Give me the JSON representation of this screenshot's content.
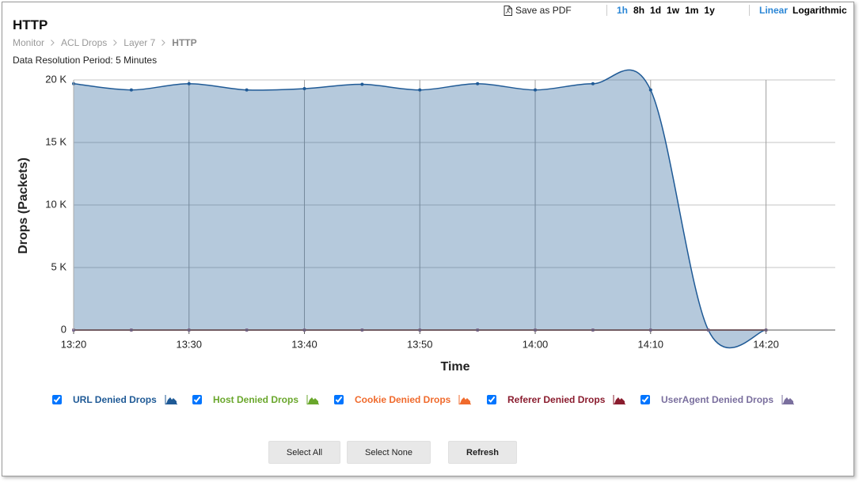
{
  "header": {
    "title": "HTTP",
    "breadcrumb": [
      "Monitor",
      "ACL Drops",
      "Layer 7",
      "HTTP"
    ],
    "resolution": "Data Resolution Period: 5 Minutes"
  },
  "toolbar": {
    "save": "Save as PDF",
    "ranges": [
      "1h",
      "8h",
      "1d",
      "1w",
      "1m",
      "1y"
    ],
    "selected_range": "1h",
    "scales": [
      "Linear",
      "Logarithmic"
    ],
    "selected_scale": "Linear"
  },
  "chart_data": {
    "type": "area",
    "x_label": "Time",
    "y_label": "Drops (Packets)",
    "x": [
      "13:20",
      "13:25",
      "13:30",
      "13:35",
      "13:40",
      "13:45",
      "13:50",
      "13:55",
      "14:00",
      "14:05",
      "14:10",
      "14:15",
      "14:20"
    ],
    "xlim": [
      "13:20",
      "14:26"
    ],
    "xticks": [
      "13:20",
      "13:30",
      "13:40",
      "13:50",
      "14:00",
      "14:10",
      "14:20"
    ],
    "ylim": [
      0,
      20000
    ],
    "yticks": [
      0,
      {
        "value": 5000,
        "label": "5 K"
      },
      {
        "value": 10000,
        "label": "10 K"
      },
      {
        "value": 15000,
        "label": "15 K"
      },
      {
        "value": 20000,
        "label": "20 K"
      }
    ],
    "grid": true,
    "log_scale": false,
    "series": [
      {
        "name": "URL Denied Drops",
        "color": "#1f5a96",
        "values": [
          19700,
          19200,
          19700,
          19200,
          19300,
          19650,
          19200,
          19700,
          19200,
          19700,
          19200,
          0,
          0
        ]
      },
      {
        "name": "Host Denied Drops",
        "color": "#6aa72c",
        "values": [
          0,
          0,
          0,
          0,
          0,
          0,
          0,
          0,
          0,
          0,
          0,
          0,
          0
        ]
      },
      {
        "name": "Cookie Denied Drops",
        "color": "#f06a2c",
        "values": [
          0,
          0,
          0,
          0,
          0,
          0,
          0,
          0,
          0,
          0,
          0,
          0,
          0
        ]
      },
      {
        "name": "Referer Denied Drops",
        "color": "#8a1c2e",
        "values": [
          0,
          0,
          0,
          0,
          0,
          0,
          0,
          0,
          0,
          0,
          0,
          0,
          0
        ]
      },
      {
        "name": "UserAgent Denied Drops",
        "color": "#7a6f9e",
        "values": [
          0,
          0,
          0,
          0,
          0,
          0,
          0,
          0,
          0,
          0,
          0,
          0,
          0
        ]
      }
    ]
  },
  "buttons": [
    "Select All",
    "Select None",
    "Refresh"
  ]
}
